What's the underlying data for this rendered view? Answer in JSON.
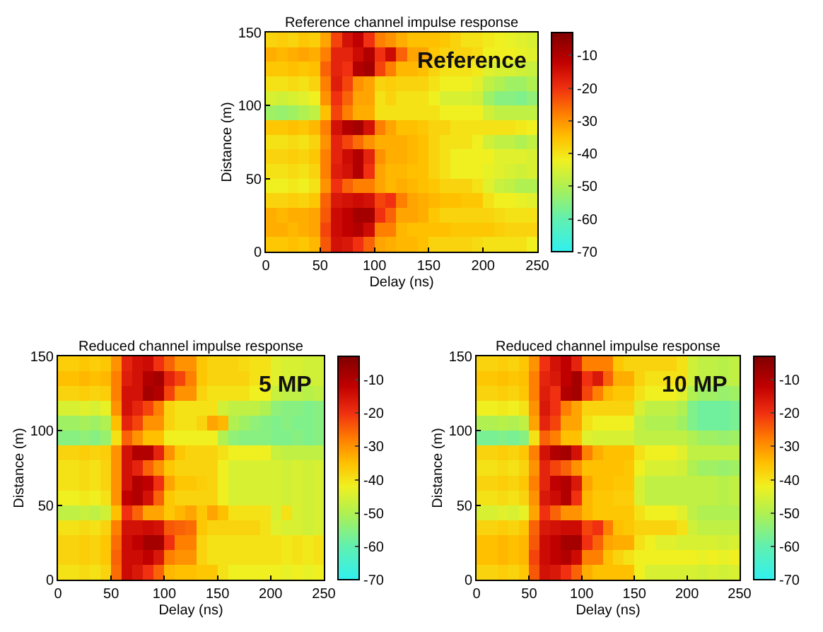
{
  "chart_data": [
    {
      "type": "heatmap",
      "title": "Reference channel impulse response",
      "xlabel": "Delay (ns)",
      "ylabel": "Distance (m)",
      "annotations": [
        "Reference"
      ],
      "x": [
        5,
        15,
        25,
        35,
        45,
        55,
        65,
        75,
        85,
        95,
        105,
        115,
        125,
        135,
        145,
        155,
        165,
        175,
        185,
        195,
        205,
        215,
        225,
        235,
        245
      ],
      "xlim": [
        0,
        250
      ],
      "xticks": [
        0,
        50,
        100,
        150,
        200,
        250
      ],
      "ylim": [
        0,
        150
      ],
      "yticks": [
        0,
        50,
        100,
        150
      ],
      "clim": [
        -70,
        -3
      ],
      "cticks": [
        -70,
        -60,
        -50,
        -40,
        -30,
        -20,
        -10
      ],
      "cells": [
        [
          -38,
          -37,
          -38,
          -36,
          -37,
          -32,
          -22,
          -15,
          -12,
          -20,
          -28,
          -30,
          -33,
          -35,
          -35,
          -35,
          -36,
          -38,
          -40,
          -40,
          -41,
          -42,
          -43,
          -44,
          -45
        ],
        [
          -33,
          -34,
          -33,
          -32,
          -33,
          -28,
          -18,
          -18,
          -14,
          -10,
          -20,
          -14,
          -25,
          -32,
          -32,
          -36,
          -38,
          -38,
          -38,
          -39,
          -42,
          -42,
          -42,
          -43,
          -44
        ],
        [
          -36,
          -36,
          -35,
          -36,
          -35,
          -25,
          -18,
          -20,
          -10,
          -8,
          -22,
          -28,
          -34,
          -34,
          -35,
          -38,
          -40,
          -40,
          -40,
          -41,
          -44,
          -45,
          -45,
          -46,
          -47
        ],
        [
          -40,
          -40,
          -39,
          -40,
          -38,
          -28,
          -17,
          -22,
          -30,
          -32,
          -38,
          -37,
          -38,
          -38,
          -38,
          -40,
          -42,
          -42,
          -42,
          -44,
          -48,
          -50,
          -52,
          -52,
          -50
        ],
        [
          -45,
          -46,
          -45,
          -44,
          -42,
          -30,
          -20,
          -25,
          -32,
          -32,
          -40,
          -38,
          -40,
          -40,
          -40,
          -42,
          -45,
          -45,
          -45,
          -46,
          -52,
          -55,
          -55,
          -56,
          -54
        ],
        [
          -52,
          -53,
          -52,
          -50,
          -48,
          -35,
          -22,
          -28,
          -33,
          -33,
          -40,
          -40,
          -40,
          -40,
          -40,
          -40,
          -42,
          -42,
          -42,
          -42,
          -46,
          -48,
          -48,
          -48,
          -48
        ],
        [
          -36,
          -36,
          -35,
          -36,
          -34,
          -28,
          -15,
          -10,
          -8,
          -15,
          -28,
          -32,
          -35,
          -35,
          -36,
          -38,
          -38,
          -40,
          -40,
          -40,
          -40,
          -40,
          -40,
          -41,
          -42
        ],
        [
          -40,
          -40,
          -39,
          -40,
          -38,
          -30,
          -18,
          -22,
          -26,
          -30,
          -33,
          -33,
          -33,
          -34,
          -35,
          -38,
          -40,
          -40,
          -40,
          -42,
          -46,
          -48,
          -48,
          -50,
          -48
        ],
        [
          -38,
          -38,
          -37,
          -38,
          -36,
          -28,
          -18,
          -14,
          -10,
          -18,
          -30,
          -33,
          -33,
          -34,
          -35,
          -38,
          -40,
          -42,
          -42,
          -42,
          -42,
          -44,
          -44,
          -44,
          -45
        ],
        [
          -40,
          -40,
          -39,
          -40,
          -38,
          -28,
          -17,
          -15,
          -10,
          -20,
          -32,
          -34,
          -34,
          -35,
          -35,
          -38,
          -40,
          -42,
          -42,
          -42,
          -43,
          -44,
          -45,
          -46,
          -45
        ],
        [
          -42,
          -42,
          -41,
          -42,
          -40,
          -30,
          -20,
          -25,
          -28,
          -28,
          -32,
          -34,
          -33,
          -34,
          -35,
          -36,
          -38,
          -38,
          -38,
          -40,
          -44,
          -47,
          -48,
          -50,
          -50
        ],
        [
          -38,
          -38,
          -37,
          -38,
          -36,
          -25,
          -16,
          -15,
          -14,
          -15,
          -22,
          -20,
          -28,
          -32,
          -33,
          -34,
          -35,
          -35,
          -36,
          -36,
          -40,
          -42,
          -42,
          -43,
          -44
        ],
        [
          -33,
          -34,
          -33,
          -33,
          -32,
          -24,
          -14,
          -12,
          -8,
          -8,
          -20,
          -25,
          -32,
          -32,
          -33,
          -36,
          -38,
          -38,
          -38,
          -38,
          -38,
          -39,
          -40,
          -40,
          -40
        ],
        [
          -33,
          -33,
          -34,
          -33,
          -32,
          -22,
          -14,
          -12,
          -10,
          -14,
          -28,
          -28,
          -34,
          -35,
          -35,
          -35,
          -35,
          -36,
          -36,
          -36,
          -36,
          -37,
          -38,
          -38,
          -38
        ],
        [
          -36,
          -36,
          -35,
          -36,
          -34,
          -24,
          -15,
          -16,
          -20,
          -25,
          -32,
          -33,
          -34,
          -34,
          -35,
          -38,
          -38,
          -38,
          -38,
          -39,
          -40,
          -40,
          -40,
          -40,
          -42
        ]
      ]
    },
    {
      "type": "heatmap",
      "title": "Reduced channel impulse response",
      "xlabel": "Delay (ns)",
      "ylabel": "Distance (m)",
      "annotations": [
        "5 MP"
      ],
      "x": [
        5,
        15,
        25,
        35,
        45,
        55,
        65,
        75,
        85,
        95,
        105,
        115,
        125,
        135,
        145,
        155,
        165,
        175,
        185,
        195,
        205,
        215,
        225,
        235,
        245
      ],
      "xlim": [
        0,
        250
      ],
      "xticks": [
        0,
        50,
        100,
        150,
        200,
        250
      ],
      "ylim": [
        0,
        150
      ],
      "yticks": [
        0,
        50,
        100,
        150
      ],
      "clim": [
        -70,
        -3
      ],
      "cticks": [
        -70,
        -60,
        -50,
        -40,
        -30,
        -20,
        -10
      ],
      "cells": [
        [
          -37,
          -37,
          -36,
          -37,
          -36,
          -30,
          -18,
          -15,
          -14,
          -20,
          -25,
          -30,
          -30,
          -36,
          -38,
          -38,
          -38,
          -39,
          -40,
          -40,
          -44,
          -45,
          -45,
          -46,
          -46
        ],
        [
          -35,
          -35,
          -34,
          -35,
          -34,
          -28,
          -17,
          -15,
          -10,
          -8,
          -18,
          -22,
          -28,
          -36,
          -38,
          -38,
          -38,
          -38,
          -40,
          -40,
          -44,
          -45,
          -45,
          -46,
          -46
        ],
        [
          -38,
          -38,
          -37,
          -38,
          -37,
          -28,
          -15,
          -15,
          -8,
          -10,
          -22,
          -30,
          -30,
          -38,
          -40,
          -40,
          -40,
          -40,
          -42,
          -42,
          -47,
          -48,
          -48,
          -49,
          -48
        ],
        [
          -45,
          -45,
          -44,
          -45,
          -43,
          -30,
          -15,
          -18,
          -22,
          -28,
          -38,
          -40,
          -40,
          -40,
          -40,
          -46,
          -48,
          -48,
          -48,
          -50,
          -54,
          -55,
          -55,
          -56,
          -55
        ],
        [
          -52,
          -52,
          -51,
          -52,
          -50,
          -35,
          -18,
          -22,
          -30,
          -30,
          -38,
          -40,
          -40,
          -38,
          -32,
          -34,
          -50,
          -52,
          -54,
          -55,
          -56,
          -55,
          -56,
          -56,
          -55
        ],
        [
          -55,
          -55,
          -54,
          -55,
          -53,
          -40,
          -25,
          -30,
          -35,
          -35,
          -42,
          -42,
          -42,
          -42,
          -42,
          -50,
          -54,
          -55,
          -55,
          -55,
          -56,
          -56,
          -55,
          -56,
          -55
        ],
        [
          -38,
          -38,
          -37,
          -38,
          -37,
          -30,
          -15,
          -10,
          -10,
          -18,
          -30,
          -36,
          -38,
          -38,
          -38,
          -40,
          -42,
          -42,
          -42,
          -42,
          -47,
          -48,
          -48,
          -48,
          -48
        ],
        [
          -40,
          -40,
          -39,
          -40,
          -38,
          -30,
          -15,
          -18,
          -25,
          -30,
          -36,
          -38,
          -38,
          -38,
          -38,
          -42,
          -45,
          -45,
          -45,
          -45,
          -45,
          -46,
          -45,
          -46,
          -45
        ],
        [
          -40,
          -40,
          -39,
          -40,
          -38,
          -30,
          -15,
          -10,
          -12,
          -20,
          -32,
          -36,
          -36,
          -37,
          -38,
          -42,
          -45,
          -45,
          -45,
          -45,
          -45,
          -46,
          -45,
          -46,
          -45
        ],
        [
          -42,
          -42,
          -41,
          -42,
          -40,
          -30,
          -12,
          -10,
          -15,
          -25,
          -36,
          -38,
          -38,
          -38,
          -38,
          -42,
          -45,
          -45,
          -45,
          -45,
          -45,
          -46,
          -45,
          -46,
          -45
        ],
        [
          -48,
          -48,
          -47,
          -48,
          -46,
          -35,
          -20,
          -25,
          -32,
          -32,
          -36,
          -34,
          -32,
          -36,
          -32,
          -35,
          -40,
          -40,
          -40,
          -40,
          -45,
          -40,
          -45,
          -46,
          -45
        ],
        [
          -40,
          -40,
          -39,
          -40,
          -38,
          -28,
          -15,
          -15,
          -14,
          -15,
          -24,
          -25,
          -26,
          -36,
          -38,
          -38,
          -38,
          -38,
          -38,
          -40,
          -44,
          -45,
          -45,
          -46,
          -45
        ],
        [
          -38,
          -38,
          -37,
          -38,
          -36,
          -26,
          -14,
          -12,
          -8,
          -8,
          -20,
          -28,
          -28,
          -38,
          -40,
          -40,
          -40,
          -40,
          -40,
          -40,
          -40,
          -41,
          -40,
          -41,
          -40
        ],
        [
          -38,
          -38,
          -37,
          -38,
          -36,
          -25,
          -14,
          -14,
          -12,
          -16,
          -28,
          -30,
          -30,
          -38,
          -40,
          -40,
          -40,
          -40,
          -40,
          -40,
          -40,
          -41,
          -40,
          -41,
          -40
        ],
        [
          -40,
          -40,
          -39,
          -40,
          -38,
          -26,
          -14,
          -16,
          -20,
          -25,
          -34,
          -35,
          -35,
          -36,
          -36,
          -40,
          -42,
          -42,
          -42,
          -42,
          -42,
          -43,
          -42,
          -43,
          -42
        ]
      ]
    },
    {
      "type": "heatmap",
      "title": "Reduced channel impulse response",
      "xlabel": "Delay (ns)",
      "ylabel": "Distance (m)",
      "annotations": [
        "10 MP"
      ],
      "x": [
        5,
        15,
        25,
        35,
        45,
        55,
        65,
        75,
        85,
        95,
        105,
        115,
        125,
        135,
        145,
        155,
        165,
        175,
        185,
        195,
        205,
        215,
        225,
        235,
        245
      ],
      "xlim": [
        0,
        250
      ],
      "xticks": [
        0,
        50,
        100,
        150,
        200,
        250
      ],
      "ylim": [
        0,
        150
      ],
      "yticks": [
        0,
        50,
        100,
        150
      ],
      "clim": [
        -70,
        -3
      ],
      "cticks": [
        -70,
        -60,
        -50,
        -40,
        -30,
        -20,
        -10
      ],
      "cells": [
        [
          -38,
          -38,
          -37,
          -38,
          -36,
          -30,
          -20,
          -15,
          -12,
          -18,
          -28,
          -28,
          -28,
          -36,
          -38,
          -38,
          -38,
          -38,
          -38,
          -40,
          -46,
          -48,
          -48,
          -49,
          -48
        ],
        [
          -36,
          -36,
          -35,
          -36,
          -35,
          -28,
          -18,
          -16,
          -12,
          -8,
          -20,
          -16,
          -25,
          -33,
          -33,
          -38,
          -40,
          -40,
          -40,
          -40,
          -46,
          -48,
          -48,
          -49,
          -48
        ],
        [
          -38,
          -38,
          -37,
          -38,
          -36,
          -28,
          -17,
          -20,
          -10,
          -8,
          -22,
          -28,
          -34,
          -36,
          -36,
          -40,
          -42,
          -42,
          -42,
          -44,
          -50,
          -52,
          -52,
          -53,
          -52
        ],
        [
          -42,
          -42,
          -41,
          -42,
          -40,
          -30,
          -16,
          -20,
          -28,
          -32,
          -38,
          -38,
          -38,
          -38,
          -38,
          -45,
          -48,
          -48,
          -48,
          -50,
          -56,
          -58,
          -58,
          -58,
          -57
        ],
        [
          -50,
          -50,
          -49,
          -50,
          -48,
          -32,
          -18,
          -22,
          -32,
          -32,
          -40,
          -42,
          -42,
          -42,
          -42,
          -48,
          -50,
          -50,
          -50,
          -52,
          -56,
          -58,
          -58,
          -58,
          -57
        ],
        [
          -57,
          -57,
          -56,
          -57,
          -55,
          -40,
          -25,
          -28,
          -35,
          -35,
          -44,
          -45,
          -45,
          -45,
          -45,
          -48,
          -48,
          -48,
          -48,
          -48,
          -50,
          -52,
          -52,
          -53,
          -52
        ],
        [
          -38,
          -38,
          -37,
          -38,
          -36,
          -28,
          -15,
          -10,
          -8,
          -15,
          -28,
          -33,
          -35,
          -35,
          -35,
          -40,
          -42,
          -42,
          -42,
          -44,
          -48,
          -48,
          -48,
          -48,
          -48
        ],
        [
          -40,
          -40,
          -39,
          -40,
          -38,
          -30,
          -18,
          -22,
          -25,
          -30,
          -35,
          -35,
          -35,
          -35,
          -36,
          -42,
          -45,
          -45,
          -45,
          -46,
          -50,
          -52,
          -52,
          -53,
          -52
        ],
        [
          -38,
          -38,
          -37,
          -38,
          -36,
          -28,
          -18,
          -12,
          -10,
          -16,
          -32,
          -35,
          -35,
          -36,
          -36,
          -45,
          -48,
          -48,
          -48,
          -48,
          -48,
          -48,
          -48,
          -49,
          -48
        ],
        [
          -40,
          -40,
          -39,
          -40,
          -38,
          -30,
          -16,
          -14,
          -10,
          -20,
          -34,
          -36,
          -36,
          -37,
          -37,
          -45,
          -48,
          -48,
          -48,
          -48,
          -48,
          -48,
          -48,
          -49,
          -48
        ],
        [
          -45,
          -45,
          -44,
          -45,
          -43,
          -32,
          -20,
          -25,
          -30,
          -30,
          -34,
          -36,
          -36,
          -36,
          -36,
          -40,
          -42,
          -42,
          -42,
          -44,
          -48,
          -50,
          -50,
          -50,
          -50
        ],
        [
          -38,
          -38,
          -37,
          -38,
          -36,
          -25,
          -16,
          -15,
          -14,
          -14,
          -22,
          -20,
          -28,
          -35,
          -36,
          -38,
          -38,
          -38,
          -38,
          -40,
          -46,
          -48,
          -48,
          -48,
          -48
        ],
        [
          -35,
          -35,
          -34,
          -35,
          -34,
          -24,
          -14,
          -12,
          -8,
          -8,
          -20,
          -25,
          -32,
          -33,
          -33,
          -40,
          -42,
          -44,
          -44,
          -45,
          -45,
          -45,
          -45,
          -46,
          -45
        ],
        [
          -35,
          -35,
          -34,
          -35,
          -34,
          -22,
          -14,
          -12,
          -10,
          -14,
          -28,
          -28,
          -35,
          -38,
          -40,
          -42,
          -42,
          -42,
          -42,
          -42,
          -42,
          -43,
          -42,
          -43,
          -42
        ],
        [
          -38,
          -38,
          -37,
          -38,
          -36,
          -24,
          -15,
          -16,
          -20,
          -25,
          -33,
          -35,
          -35,
          -35,
          -35,
          -42,
          -45,
          -45,
          -45,
          -45,
          -45,
          -46,
          -45,
          -46,
          -45
        ]
      ]
    }
  ]
}
